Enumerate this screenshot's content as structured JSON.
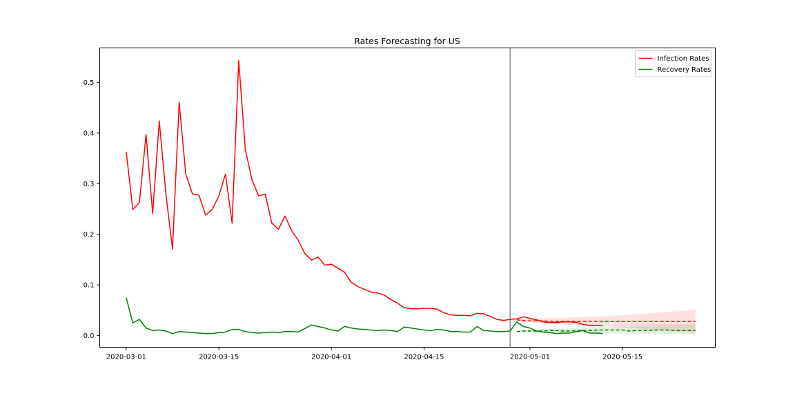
{
  "chart_data": {
    "type": "line",
    "title": "Rates Forecasting for US",
    "xlabel": "",
    "ylabel": "",
    "x_start": "2020-03-01",
    "x_end": "2020-05-12",
    "xlim": [
      "2020-02-26",
      "2020-05-29"
    ],
    "ylim": [
      -0.023,
      0.568
    ],
    "x_ticks": [
      "2020-03-01",
      "2020-03-15",
      "2020-04-01",
      "2020-04-15",
      "2020-05-01",
      "2020-05-15"
    ],
    "y_ticks": [
      0.0,
      0.1,
      0.2,
      0.3,
      0.4,
      0.5
    ],
    "y_tick_labels": [
      "0.0",
      "0.1",
      "0.2",
      "0.3",
      "0.4",
      "0.5"
    ],
    "forecast_start": "2020-04-28",
    "grid": false,
    "legend_position": "top-right",
    "series": [
      {
        "name": "Infection Rates",
        "color": "#ff0000",
        "values": [
          0.363,
          0.249,
          0.263,
          0.397,
          0.241,
          0.424,
          0.279,
          0.171,
          0.461,
          0.319,
          0.28,
          0.277,
          0.238,
          0.249,
          0.276,
          0.319,
          0.222,
          0.543,
          0.367,
          0.308,
          0.276,
          0.279,
          0.222,
          0.21,
          0.236,
          0.207,
          0.188,
          0.162,
          0.149,
          0.155,
          0.139,
          0.141,
          0.133,
          0.125,
          0.105,
          0.097,
          0.091,
          0.086,
          0.084,
          0.08,
          0.071,
          0.064,
          0.055,
          0.053,
          0.053,
          0.054,
          0.054,
          0.052,
          0.045,
          0.041,
          0.04,
          0.04,
          0.039,
          0.044,
          0.043,
          0.038,
          0.032,
          0.03,
          0.032,
          0.033,
          0.037,
          0.034,
          0.031,
          0.027,
          0.026,
          0.026,
          0.027,
          0.027,
          0.026,
          0.022,
          0.02,
          0.02,
          0.019
        ]
      },
      {
        "name": "Recovery Rates",
        "color": "#008000",
        "values": [
          0.075,
          0.025,
          0.032,
          0.015,
          0.01,
          0.011,
          0.009,
          0.004,
          0.008,
          0.007,
          0.006,
          0.005,
          0.004,
          0.004,
          0.006,
          0.007,
          0.012,
          0.012,
          0.008,
          0.006,
          0.005,
          0.006,
          0.007,
          0.006,
          0.008,
          0.008,
          0.007,
          0.014,
          0.021,
          0.018,
          0.015,
          0.011,
          0.009,
          0.018,
          0.015,
          0.013,
          0.012,
          0.011,
          0.01,
          0.011,
          0.01,
          0.008,
          0.017,
          0.015,
          0.013,
          0.011,
          0.01,
          0.012,
          0.011,
          0.008,
          0.008,
          0.007,
          0.007,
          0.018,
          0.01,
          0.009,
          0.008,
          0.008,
          0.009,
          0.027,
          0.018,
          0.015,
          0.009,
          0.007,
          0.006,
          0.004,
          0.005,
          0.005,
          0.008,
          0.01,
          0.005,
          0.005,
          0.004
        ]
      }
    ],
    "forecast_series": [
      {
        "name": "Infection Rates",
        "color": "#ff0000",
        "start": "2020-04-29",
        "values": [
          0.031,
          0.03,
          0.029,
          0.029,
          0.029,
          0.028,
          0.028,
          0.028,
          0.028,
          0.028,
          0.028,
          0.028,
          0.028,
          0.028,
          0.028,
          0.028,
          0.028,
          0.028,
          0.028,
          0.028,
          0.028,
          0.028,
          0.028,
          0.028,
          0.028,
          0.028,
          0.028,
          0.028
        ],
        "upper": [
          0.033,
          0.033,
          0.033,
          0.034,
          0.034,
          0.035,
          0.035,
          0.035,
          0.036,
          0.036,
          0.037,
          0.037,
          0.038,
          0.038,
          0.039,
          0.04,
          0.04,
          0.041,
          0.042,
          0.043,
          0.044,
          0.045,
          0.046,
          0.047,
          0.048,
          0.049,
          0.05,
          0.051
        ],
        "lower": [
          0.029,
          0.027,
          0.026,
          0.025,
          0.024,
          0.023,
          0.023,
          0.022,
          0.021,
          0.021,
          0.02,
          0.019,
          0.019,
          0.018,
          0.018,
          0.017,
          0.016,
          0.015,
          0.014,
          0.013,
          0.012,
          0.011,
          0.01,
          0.009,
          0.008,
          0.007,
          0.006,
          0.005
        ]
      },
      {
        "name": "Recovery Rates",
        "color": "#008000",
        "start": "2020-04-29",
        "values": [
          0.008,
          0.009,
          0.009,
          0.009,
          0.009,
          0.01,
          0.01,
          0.009,
          0.009,
          0.01,
          0.01,
          0.01,
          0.011,
          0.011,
          0.011,
          0.011,
          0.011,
          0.009,
          0.01,
          0.01,
          0.01,
          0.011,
          0.011,
          0.011,
          0.01,
          0.01,
          0.01,
          0.01
        ],
        "upper": [
          0.01,
          0.011,
          0.012,
          0.012,
          0.013,
          0.013,
          0.014,
          0.014,
          0.014,
          0.015,
          0.015,
          0.016,
          0.016,
          0.017,
          0.017,
          0.018,
          0.018,
          0.018,
          0.019,
          0.019,
          0.02,
          0.02,
          0.021,
          0.021,
          0.021,
          0.022,
          0.022,
          0.023
        ],
        "lower": [
          0.006,
          0.006,
          0.006,
          0.006,
          0.006,
          0.006,
          0.006,
          0.005,
          0.005,
          0.005,
          0.005,
          0.004,
          0.004,
          0.004,
          0.004,
          0.004,
          0.004,
          0.003,
          0.003,
          0.003,
          0.003,
          0.003,
          0.003,
          0.003,
          0.003,
          0.003,
          0.003,
          0.002
        ]
      }
    ]
  }
}
